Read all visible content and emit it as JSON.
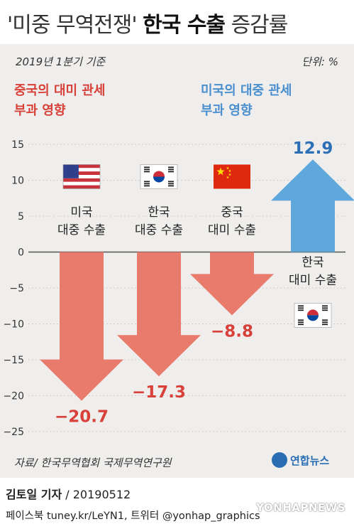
{
  "header": {
    "title_part1": "'미중 무역전쟁' ",
    "title_part2": "한국 수출",
    "title_part3": " 증감률"
  },
  "subtitle": "2019년 1분기 기준",
  "unit": "단위: %",
  "groups": {
    "left": "중국의 대미 관세\n부과 영향",
    "right": "미국의 대중 관세\n부과 영향"
  },
  "chart_data": {
    "type": "bar",
    "categories": [
      "미국 대중 수출",
      "한국 대중 수출",
      "중국 대미 수출",
      "한국 대미 수출"
    ],
    "values": [
      -20.7,
      -17.3,
      -8.8,
      12.9
    ],
    "value_labels": [
      "−20.7",
      "−17.3",
      "−8.8",
      "12.9"
    ],
    "ylim": [
      -25,
      15
    ],
    "yticks": [
      15,
      10,
      5,
      0,
      -5,
      -10,
      -15,
      -20,
      -25
    ],
    "ytick_labels": [
      "15",
      "10",
      "5",
      "0",
      "−5",
      "−10",
      "−15",
      "−20",
      "−25"
    ],
    "bars": [
      {
        "label_line1": "미국",
        "label_line2": "대중 수출",
        "flag": "us-flag",
        "color": "#e87b6c"
      },
      {
        "label_line1": "한국",
        "label_line2": "대중 수출",
        "flag": "korea-flag",
        "color": "#e87b6c"
      },
      {
        "label_line1": "중국",
        "label_line2": "대미 수출",
        "flag": "china-flag",
        "color": "#e87b6c"
      },
      {
        "label_line1": "한국",
        "label_line2": "대미 수출",
        "flag": "korea-flag",
        "color": "#5ea8dc"
      }
    ],
    "colors": {
      "negative": "#e87b6c",
      "positive": "#5ea8dc",
      "neg_label": "#d8413a",
      "pos_label": "#2d6fb6"
    }
  },
  "source": "자료/ 한국무역협회 국제무역연구원",
  "logo": "연합뉴스",
  "reporter": {
    "name": "김토일 기자",
    "date": " / 20190512"
  },
  "sns": "페이스북 tuney.kr/LeYN1, 트위터 @yonhap_graphics",
  "watermark": "YONHAPNEWS"
}
